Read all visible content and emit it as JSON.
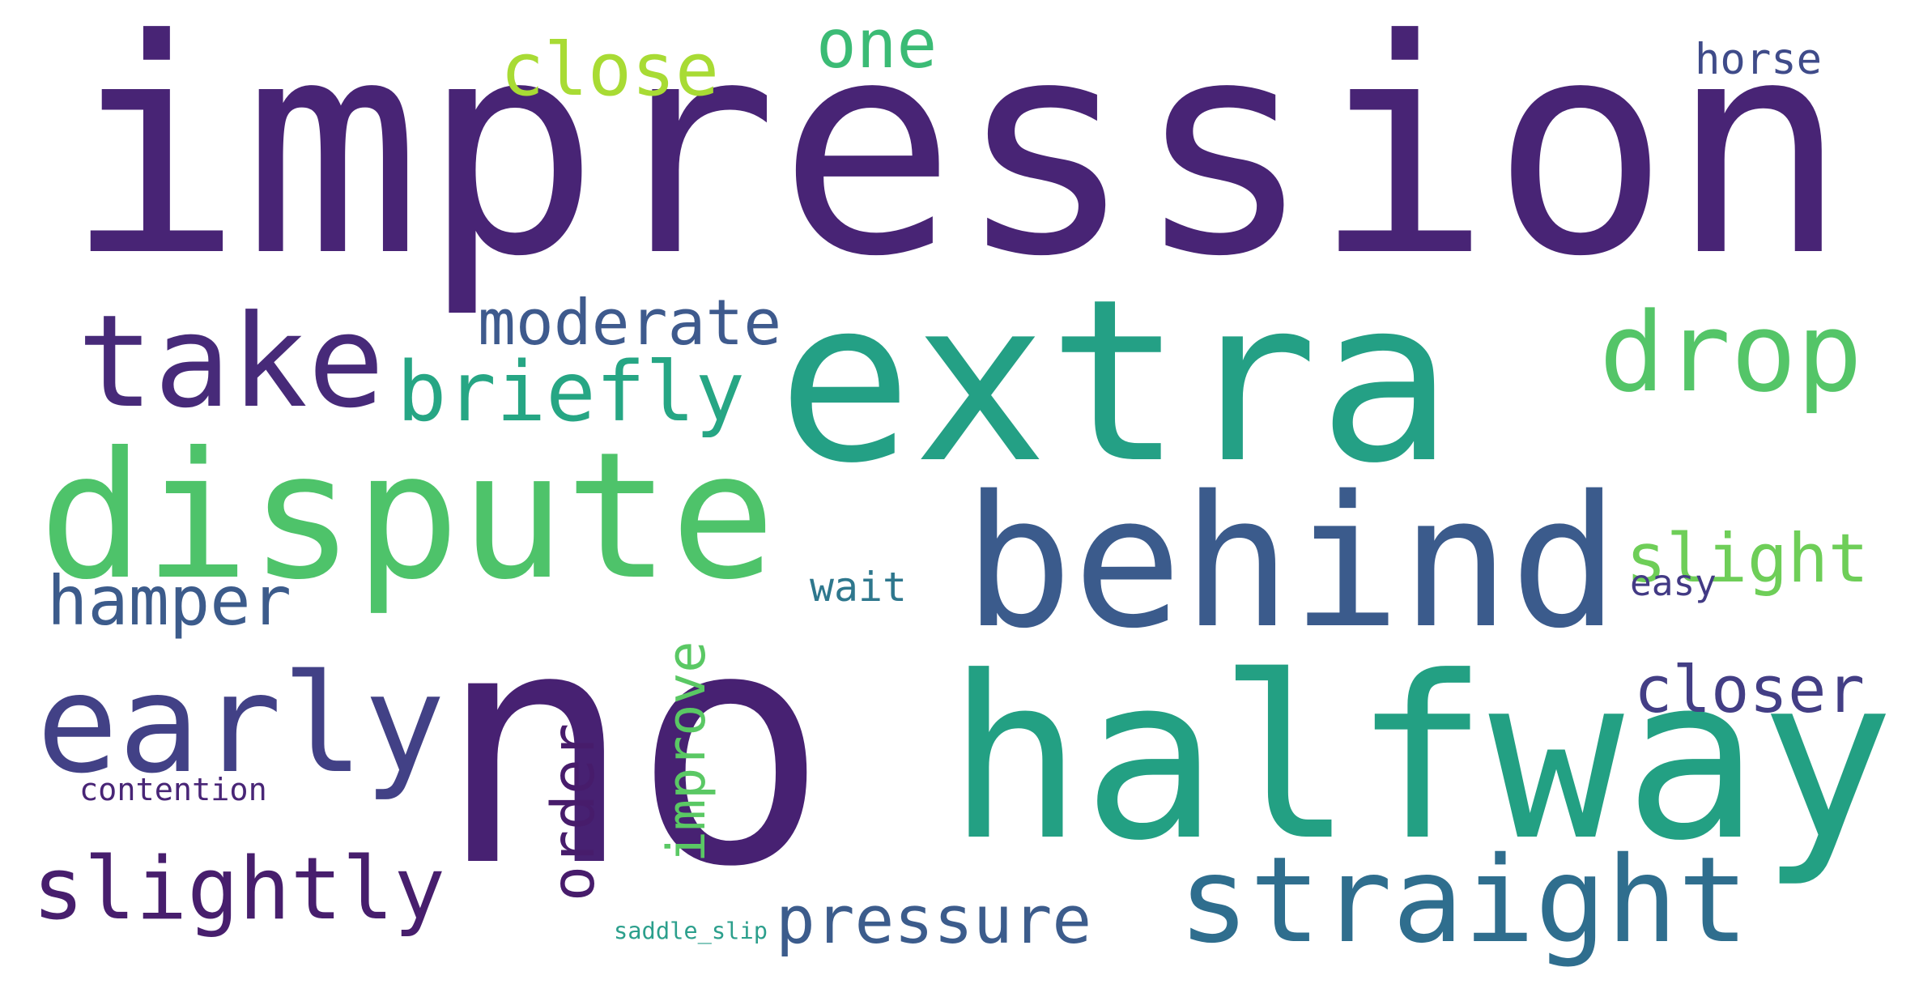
{
  "cloud": {
    "words": [
      {
        "id": "impression",
        "text": "impression",
        "color": "#482475"
      },
      {
        "id": "no",
        "text": "no",
        "color": "#472172"
      },
      {
        "id": "extra",
        "text": "extra",
        "color": "#24a085"
      },
      {
        "id": "halfway",
        "text": "halfway",
        "color": "#23a083"
      },
      {
        "id": "behind",
        "text": "behind",
        "color": "#3b5b8c"
      },
      {
        "id": "dispute",
        "text": "dispute",
        "color": "#4ec36a"
      },
      {
        "id": "straight",
        "text": "straight",
        "color": "#2f6e8e"
      },
      {
        "id": "take",
        "text": "take",
        "color": "#472a79"
      },
      {
        "id": "early",
        "text": "early",
        "color": "#424186"
      },
      {
        "id": "drop",
        "text": "drop",
        "color": "#54c568"
      },
      {
        "id": "briefly",
        "text": "briefly",
        "color": "#26a684"
      },
      {
        "id": "slightly",
        "text": "slightly",
        "color": "#471e6d"
      },
      {
        "id": "moderate",
        "text": "moderate",
        "color": "#3e5a8d"
      },
      {
        "id": "close",
        "text": "close",
        "color": "#a8db34"
      },
      {
        "id": "one",
        "text": "one",
        "color": "#3bbb75"
      },
      {
        "id": "hamper",
        "text": "hamper",
        "color": "#3c5b8b"
      },
      {
        "id": "slight",
        "text": "slight",
        "color": "#6ece58"
      },
      {
        "id": "closer",
        "text": "closer",
        "color": "#433e85"
      },
      {
        "id": "pressure",
        "text": "pressure",
        "color": "#3c5c8c"
      },
      {
        "id": "order",
        "text": "order",
        "color": "#471c6b"
      },
      {
        "id": "improve",
        "text": "improve",
        "color": "#5ac864"
      },
      {
        "id": "horse",
        "text": "horse",
        "color": "#3f4b89"
      },
      {
        "id": "wait",
        "text": "wait",
        "color": "#2e778d"
      },
      {
        "id": "easy",
        "text": "easy",
        "color": "#423a84"
      },
      {
        "id": "contention",
        "text": "contention",
        "color": "#482576"
      },
      {
        "id": "saddle_slip",
        "text": "saddle_slip",
        "color": "#2b9f8c"
      }
    ]
  }
}
